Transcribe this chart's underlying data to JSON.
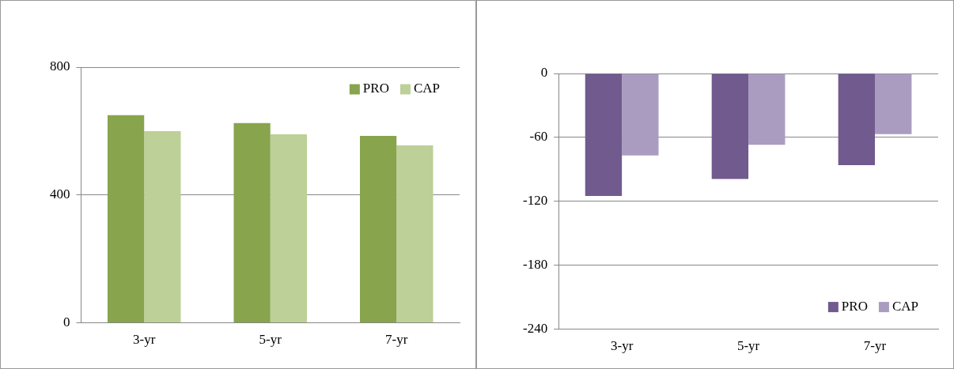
{
  "chart_data": [
    {
      "type": "bar",
      "categories": [
        "3-yr",
        "5-yr",
        "7-yr"
      ],
      "series": [
        {
          "name": "PRO",
          "color": "#88a44c",
          "values": [
            650,
            625,
            585
          ]
        },
        {
          "name": "CAP",
          "color": "#bcd097",
          "values": [
            600,
            590,
            555
          ]
        }
      ],
      "ylim": [
        0,
        800
      ],
      "yticks": [
        0,
        400,
        800
      ],
      "grid": "y",
      "legend": "top right"
    },
    {
      "type": "bar",
      "categories": [
        "3-yr",
        "5-yr",
        "7-yr"
      ],
      "series": [
        {
          "name": "PRO",
          "color": "#715a8e",
          "values": [
            -115,
            -99,
            -86
          ]
        },
        {
          "name": "CAP",
          "color": "#aa9cc1",
          "values": [
            -77,
            -67,
            -57
          ]
        }
      ],
      "ylim": [
        -240,
        0
      ],
      "yticks": [
        -240,
        -180,
        -120,
        -60,
        0
      ],
      "grid": "y",
      "legend": "bottom right"
    }
  ]
}
